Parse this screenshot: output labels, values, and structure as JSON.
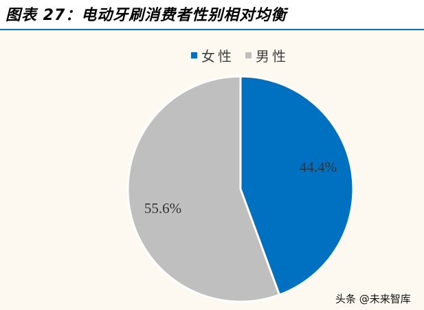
{
  "header": {
    "title": "图表 27：电动牙刷消费者性别相对均衡"
  },
  "chart_data": {
    "type": "pie",
    "categories": [
      "女性",
      "男性"
    ],
    "values": [
      44.4,
      55.6
    ],
    "data_labels": [
      "44.4%",
      "55.6%"
    ],
    "colors": [
      "#0070C0",
      "#BFBFBF"
    ],
    "legend": "top",
    "start_angle": "12 o'clock, clockwise"
  },
  "watermark": "头条 @未来智库"
}
